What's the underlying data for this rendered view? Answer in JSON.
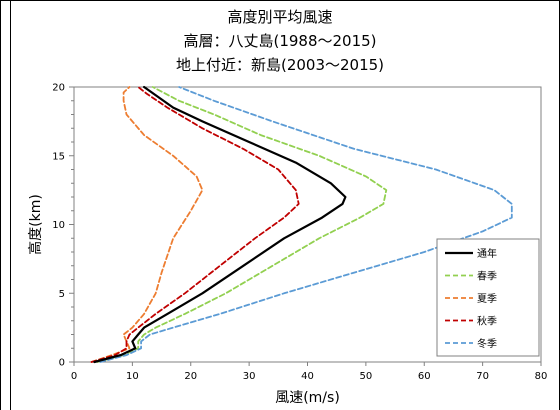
{
  "chart_data": {
    "type": "line",
    "title": [
      "高度別平均風速",
      "高層：八丈島(1988〜2015)",
      "地上付近：新島(2003〜2015)"
    ],
    "xlabel": "風速(m/s)",
    "ylabel": "高度(km)",
    "xlim": [
      0,
      80
    ],
    "ylim": [
      0,
      20
    ],
    "xticks": [
      "0",
      "10",
      "20",
      "30",
      "40",
      "50",
      "60",
      "70",
      "80"
    ],
    "yticks": [
      "0",
      "5",
      "10",
      "15",
      "20"
    ],
    "legend_position": "right",
    "series": [
      {
        "name": "通年",
        "color": "#000000",
        "dash": "solid",
        "x": [
          3.5,
          8,
          10.5,
          10,
          11,
          12,
          16,
          22,
          29,
          36,
          42.5,
          46,
          46.5,
          44,
          38,
          30,
          22,
          17,
          12
        ],
        "y": [
          0,
          0.5,
          1,
          1.5,
          2,
          2.5,
          3.5,
          5,
          7,
          9,
          10.5,
          11.5,
          12,
          13,
          14.5,
          16,
          17.5,
          18.5,
          20
        ]
      },
      {
        "name": "春季",
        "color": "#92d050",
        "dash": "dashed",
        "x": [
          4,
          8.5,
          11,
          11,
          12,
          14,
          19,
          26,
          34,
          42,
          49,
          53,
          53.5,
          50,
          42,
          32,
          24,
          18,
          13.5
        ],
        "y": [
          0,
          0.5,
          1,
          1.5,
          2,
          2.5,
          3.5,
          5,
          7,
          9,
          10.5,
          11.5,
          12.5,
          13.5,
          15,
          16.5,
          18,
          19,
          20
        ]
      },
      {
        "name": "夏季",
        "color": "#ed7d31",
        "dash": "dashed",
        "x": [
          3,
          6.5,
          9.5,
          9,
          8.5,
          10,
          12,
          14,
          15,
          17,
          20,
          22,
          21,
          17,
          12,
          9,
          8.5,
          8.5,
          9.5
        ],
        "y": [
          0,
          0.5,
          1,
          1.5,
          2,
          2.5,
          3.5,
          5,
          6.5,
          9,
          11,
          12.5,
          13.5,
          15,
          16.5,
          18,
          19,
          19.6,
          20
        ]
      },
      {
        "name": "秋季",
        "color": "#c00000",
        "dash": "dashed",
        "x": [
          3,
          7,
          9,
          9,
          9.5,
          11,
          14,
          19,
          25,
          31,
          36,
          38.5,
          38,
          35,
          29,
          22,
          16,
          12.5,
          11
        ],
        "y": [
          0,
          0.5,
          1,
          1.5,
          2,
          2.5,
          3.5,
          5,
          7,
          9,
          10.5,
          11.5,
          12.5,
          14,
          15.5,
          17,
          18.5,
          19.5,
          20
        ]
      },
      {
        "name": "冬季",
        "color": "#5b9bd5",
        "dash": "dashed",
        "x": [
          4.5,
          9,
          11.5,
          11.5,
          13,
          17,
          25,
          36,
          48,
          60,
          70,
          75,
          75,
          72,
          62,
          48,
          34,
          24,
          18
        ],
        "y": [
          0,
          0.5,
          1,
          1.5,
          2,
          2.5,
          3.5,
          5,
          6.5,
          8,
          9.5,
          10.5,
          11.5,
          12.5,
          14,
          15.5,
          17.5,
          19,
          20
        ]
      }
    ]
  }
}
